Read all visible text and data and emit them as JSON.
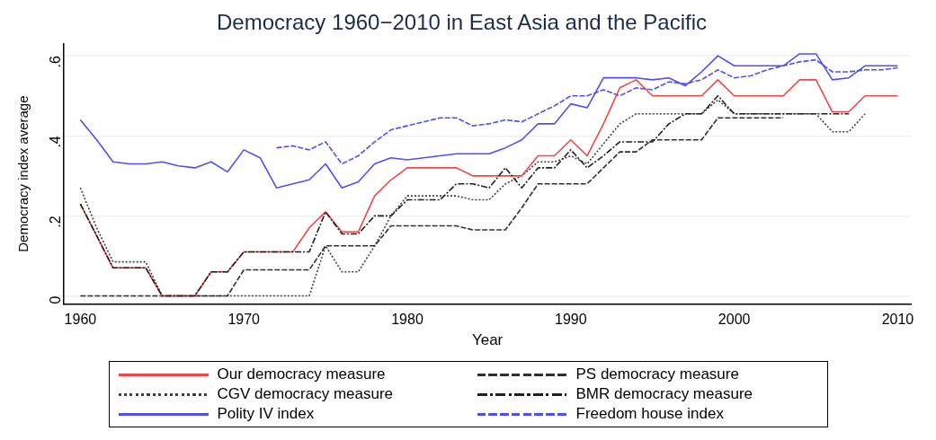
{
  "chart_data": {
    "type": "line",
    "title": "Democracy 1960−2010 in East Asia and the Pacific",
    "xlabel": "Year",
    "ylabel": "Democracy index average",
    "xlim": [
      1959,
      2010.8
    ],
    "xticks": [
      1960,
      1970,
      1980,
      1990,
      2000,
      2010
    ],
    "ylim": [
      -0.02,
      0.63
    ],
    "yticks": [
      {
        "value": 0,
        "label": "0"
      },
      {
        "value": 0.2,
        "label": ".2"
      },
      {
        "value": 0.4,
        "label": ".4"
      },
      {
        "value": 0.6,
        "label": ".6"
      }
    ],
    "grid": "y",
    "legend": "bottom",
    "marker": "none",
    "x": [
      1960,
      1961,
      1962,
      1963,
      1964,
      1965,
      1966,
      1967,
      1968,
      1969,
      1970,
      1971,
      1972,
      1973,
      1974,
      1975,
      1976,
      1977,
      1978,
      1979,
      1980,
      1981,
      1982,
      1983,
      1984,
      1985,
      1986,
      1987,
      1988,
      1989,
      1990,
      1991,
      1992,
      1993,
      1994,
      1995,
      1996,
      1997,
      1998,
      1999,
      2000,
      2001,
      2002,
      2003,
      2004,
      2005,
      2006,
      2007,
      2008,
      2009,
      2010
    ],
    "series": [
      {
        "name": "Our democracy measure",
        "color": "#f04848",
        "line_style": "solid",
        "values": [
          0.23,
          0.15,
          0.07,
          0.07,
          0.07,
          0,
          0,
          0,
          0.06,
          0.06,
          0.11,
          0.11,
          0.11,
          0.11,
          0.17,
          0.21,
          0.16,
          0.16,
          0.25,
          0.29,
          0.32,
          0.32,
          0.32,
          0.32,
          0.3,
          0.3,
          0.3,
          0.3,
          0.35,
          0.35,
          0.39,
          0.35,
          0.43,
          0.52,
          0.54,
          0.5,
          0.5,
          0.5,
          0.5,
          0.54,
          0.5,
          0.5,
          0.5,
          0.5,
          0.54,
          0.54,
          0.46,
          0.46,
          0.5,
          0.5,
          0.5
        ]
      },
      {
        "name": "PS democracy measure",
        "color": "#303030",
        "line_style": "dashed",
        "values": [
          0,
          0,
          0,
          0,
          0,
          0,
          0,
          0,
          0,
          0,
          0.065,
          0.065,
          0.065,
          0.065,
          0.065,
          0.125,
          0.125,
          0.125,
          0.125,
          0.175,
          0.175,
          0.175,
          0.175,
          0.175,
          0.165,
          0.165,
          0.165,
          0.22,
          0.28,
          0.28,
          0.28,
          0.28,
          0.32,
          0.36,
          0.36,
          0.39,
          0.39,
          0.39,
          0.39,
          0.445,
          0.445,
          0.445,
          0.445,
          0.445,
          null,
          null,
          null,
          null,
          null,
          null,
          null
        ]
      },
      {
        "name": "CGV democracy measure",
        "color": "#404040",
        "line_style": "dotted",
        "values": [
          0.27,
          0.17,
          0.085,
          0.085,
          0.085,
          0,
          0,
          0,
          0,
          0,
          0,
          0,
          0,
          0,
          0,
          0.125,
          0.06,
          0.06,
          0.125,
          0.2,
          0.25,
          0.25,
          0.25,
          0.25,
          0.24,
          0.24,
          0.28,
          0.3,
          0.335,
          0.335,
          0.35,
          0.33,
          0.38,
          0.43,
          0.455,
          0.455,
          0.455,
          0.455,
          0.455,
          0.49,
          0.455,
          0.455,
          0.455,
          0.455,
          0.455,
          0.455,
          0.41,
          0.41,
          0.455,
          null,
          null
        ]
      },
      {
        "name": "BMR democracy measure",
        "color": "#202020",
        "line_style": "dashdot",
        "values": [
          0.23,
          0.15,
          0.07,
          0.07,
          0.07,
          0,
          0,
          0,
          0.06,
          0.06,
          0.11,
          0.11,
          0.11,
          0.11,
          0.11,
          0.21,
          0.155,
          0.155,
          0.2,
          0.2,
          0.24,
          0.24,
          0.24,
          0.28,
          0.28,
          0.27,
          0.32,
          0.27,
          0.32,
          0.32,
          0.365,
          0.32,
          0.35,
          0.385,
          0.385,
          0.385,
          0.43,
          0.455,
          0.455,
          0.5,
          0.455,
          0.455,
          0.455,
          0.455,
          0.455,
          0.455,
          0.455,
          0.455,
          null,
          null,
          null
        ]
      },
      {
        "name": "Polity IV index",
        "color": "#5050ee",
        "line_style": "solid",
        "values": [
          0.44,
          0.39,
          0.335,
          0.33,
          0.33,
          0.335,
          0.325,
          0.32,
          0.335,
          0.31,
          0.365,
          0.345,
          0.27,
          0.28,
          0.29,
          0.33,
          0.27,
          0.285,
          0.33,
          0.345,
          0.34,
          0.345,
          0.35,
          0.355,
          0.355,
          0.355,
          0.37,
          0.39,
          0.43,
          0.43,
          0.48,
          0.47,
          0.545,
          0.545,
          0.545,
          0.54,
          0.545,
          0.525,
          0.56,
          0.6,
          0.575,
          0.575,
          0.575,
          0.575,
          0.605,
          0.605,
          0.54,
          0.545,
          0.575,
          0.575,
          0.575
        ]
      },
      {
        "name": "Freedom house index",
        "color": "#5050ee",
        "line_style": "dashed",
        "values": [
          null,
          null,
          null,
          null,
          null,
          null,
          null,
          null,
          null,
          null,
          null,
          null,
          0.37,
          0.375,
          0.365,
          0.385,
          0.33,
          0.35,
          0.385,
          0.415,
          0.425,
          0.435,
          0.445,
          0.445,
          0.425,
          0.43,
          0.44,
          0.435,
          0.455,
          0.475,
          0.5,
          0.5,
          0.515,
          0.5,
          0.52,
          0.515,
          0.535,
          0.53,
          0.54,
          0.565,
          0.545,
          0.55,
          0.565,
          0.575,
          0.585,
          0.59,
          0.56,
          0.56,
          0.565,
          0.565,
          0.57
        ]
      }
    ]
  }
}
